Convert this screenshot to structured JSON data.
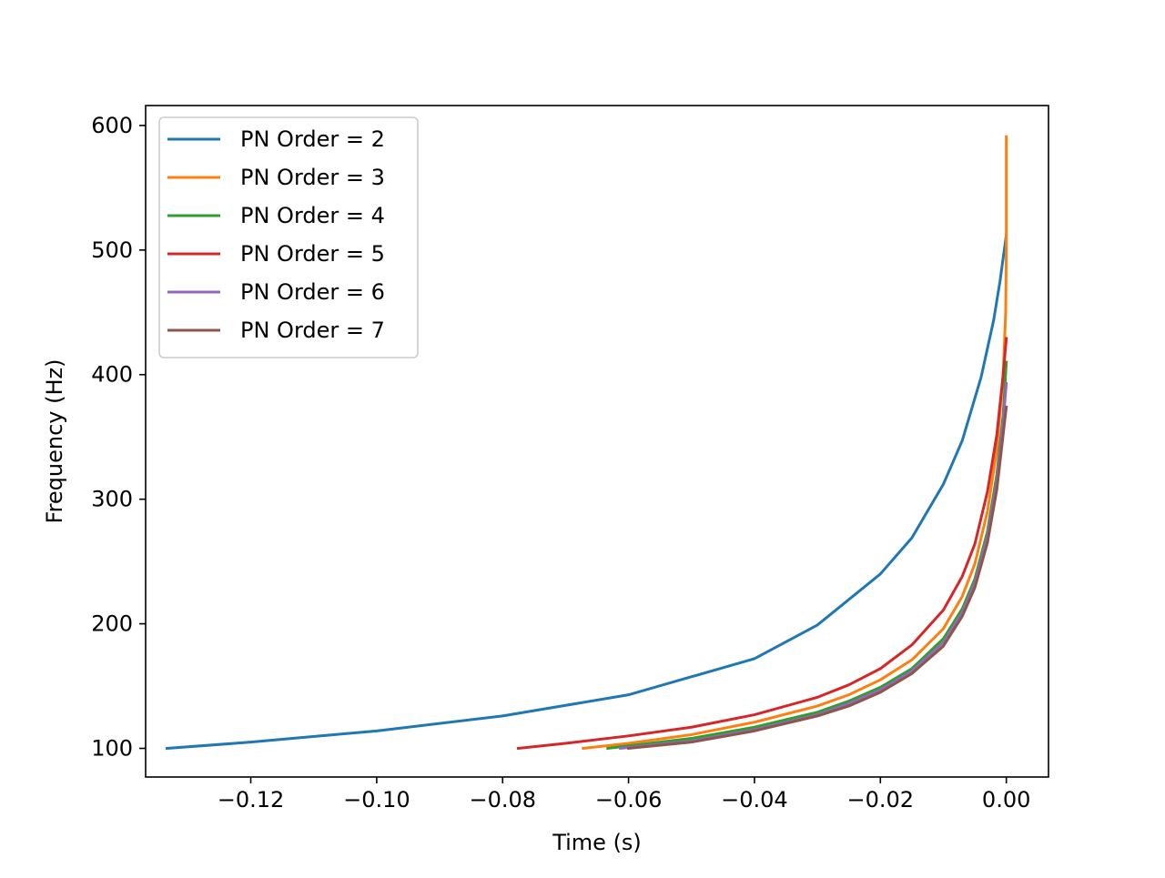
{
  "chart_data": {
    "type": "line",
    "title": "",
    "xlabel": "Time (s)",
    "ylabel": "Frequency (Hz)",
    "xlim": [
      -0.1367,
      0.0067
    ],
    "ylim": [
      77,
      616
    ],
    "xticks": [
      -0.12,
      -0.1,
      -0.08,
      -0.06,
      -0.04,
      -0.02,
      0.0
    ],
    "xtick_labels": [
      "−0.12",
      "−0.10",
      "−0.08",
      "−0.06",
      "−0.04",
      "−0.02",
      "0.00"
    ],
    "yticks": [
      100,
      200,
      300,
      400,
      500,
      600
    ],
    "ytick_labels": [
      "100",
      "200",
      "300",
      "400",
      "500",
      "600"
    ],
    "grid": false,
    "legend_position": "top-left",
    "series": [
      {
        "name": "PN Order = 2",
        "color": "#1f77b4",
        "x": [
          -0.1333,
          -0.12,
          -0.1,
          -0.08,
          -0.06,
          -0.04,
          -0.03,
          -0.02,
          -0.015,
          -0.01,
          -0.007,
          -0.004,
          -0.002,
          -0.001,
          0.0
        ],
        "y": [
          100,
          105,
          114,
          126,
          143,
          172,
          199,
          240,
          269,
          312,
          347,
          398,
          444,
          475,
          512
        ]
      },
      {
        "name": "PN Order = 3",
        "color": "#ff7f0e",
        "x": [
          -0.0672,
          -0.06,
          -0.05,
          -0.04,
          -0.03,
          -0.025,
          -0.02,
          -0.015,
          -0.01,
          -0.007,
          -0.005,
          -0.003,
          -0.0015,
          -0.0005,
          -0.0001,
          0.0,
          0.0
        ],
        "y": [
          100,
          104,
          111,
          121,
          134,
          143,
          155,
          171,
          196,
          222,
          248,
          290,
          340,
          400,
          450,
          500,
          591
        ]
      },
      {
        "name": "PN Order = 4",
        "color": "#2ca02c",
        "x": [
          -0.0633,
          -0.06,
          -0.05,
          -0.04,
          -0.03,
          -0.025,
          -0.02,
          -0.015,
          -0.01,
          -0.007,
          -0.005,
          -0.003,
          -0.0015,
          -0.0005,
          0.0
        ],
        "y": [
          100,
          102,
          108,
          117,
          129,
          138,
          149,
          164,
          188,
          212,
          236,
          274,
          320,
          368,
          410
        ]
      },
      {
        "name": "PN Order = 5",
        "color": "#d62728",
        "x": [
          -0.0775,
          -0.07,
          -0.06,
          -0.05,
          -0.04,
          -0.03,
          -0.025,
          -0.02,
          -0.015,
          -0.01,
          -0.007,
          -0.005,
          -0.003,
          -0.0015,
          -0.0005,
          0.0
        ],
        "y": [
          100,
          104,
          110,
          117,
          127,
          141,
          151,
          164,
          183,
          211,
          238,
          264,
          306,
          352,
          400,
          429
        ]
      },
      {
        "name": "PN Order = 6",
        "color": "#9467bd",
        "x": [
          -0.0613,
          -0.05,
          -0.04,
          -0.03,
          -0.025,
          -0.02,
          -0.015,
          -0.01,
          -0.007,
          -0.005,
          -0.003,
          -0.0015,
          -0.0005,
          0.0
        ],
        "y": [
          100,
          106,
          115,
          127,
          136,
          147,
          162,
          185,
          209,
          233,
          270,
          315,
          362,
          393
        ]
      },
      {
        "name": "PN Order = 7",
        "color": "#8c564b",
        "x": [
          -0.06,
          -0.05,
          -0.04,
          -0.03,
          -0.025,
          -0.02,
          -0.015,
          -0.01,
          -0.007,
          -0.005,
          -0.003,
          -0.0015,
          -0.0005,
          0.0
        ],
        "y": [
          100,
          105,
          114,
          126,
          134,
          145,
          160,
          182,
          206,
          229,
          265,
          308,
          352,
          374
        ]
      }
    ]
  }
}
